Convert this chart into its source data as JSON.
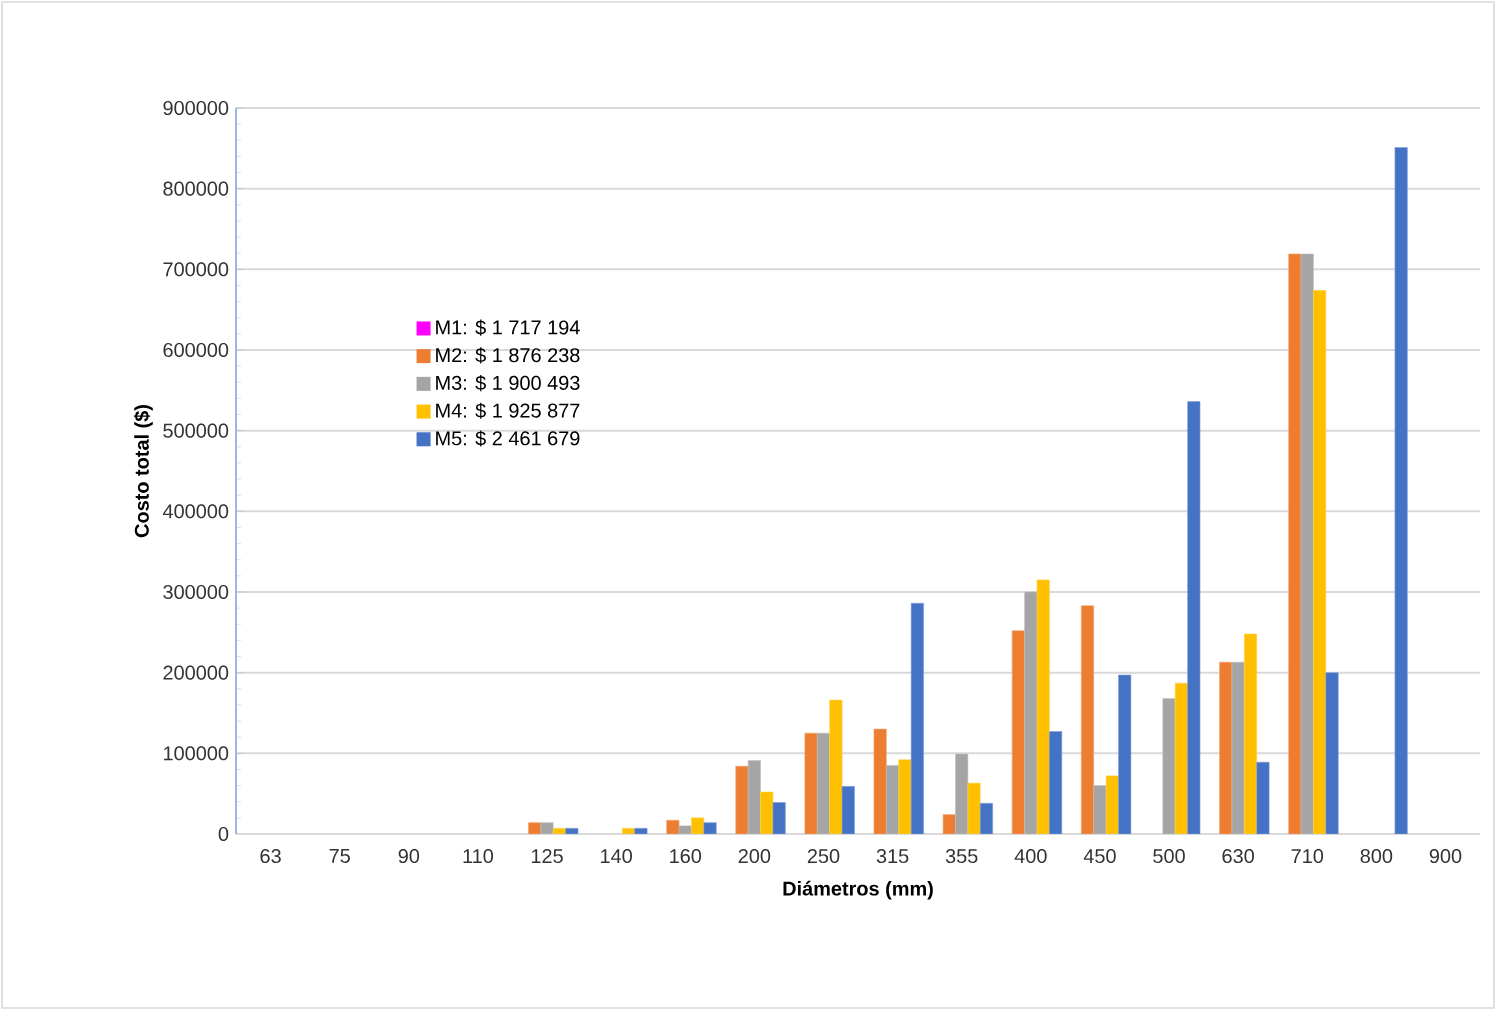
{
  "chart_data": {
    "type": "bar",
    "xlabel": "Diámetros (mm)",
    "ylabel": "Costo total ($)",
    "categories": [
      "63",
      "75",
      "90",
      "110",
      "125",
      "140",
      "160",
      "200",
      "250",
      "315",
      "355",
      "400",
      "450",
      "500",
      "630",
      "710",
      "800",
      "900"
    ],
    "series": [
      {
        "name": "M1:   $ 1 717 194",
        "color": "#ff00ff",
        "values": [
          null,
          null,
          null,
          null,
          null,
          null,
          null,
          null,
          null,
          null,
          null,
          null,
          null,
          null,
          null,
          null,
          null,
          null
        ]
      },
      {
        "name": "M2:   $ 1 876 238",
        "color": "#ed7d31",
        "values": [
          null,
          null,
          null,
          null,
          14000,
          null,
          17000,
          84000,
          125000,
          130000,
          24000,
          252000,
          283000,
          null,
          213000,
          719000,
          null,
          null
        ]
      },
      {
        "name": "M3:   $ 1 900 493",
        "color": "#a5a5a5",
        "values": [
          null,
          null,
          null,
          null,
          14000,
          null,
          10000,
          91000,
          125000,
          85000,
          99000,
          300000,
          60000,
          168000,
          213000,
          719000,
          null,
          null
        ]
      },
      {
        "name": "M4:   $ 1 925 877",
        "color": "#ffc000",
        "values": [
          null,
          null,
          null,
          null,
          7000,
          7000,
          20000,
          52000,
          166000,
          92000,
          63000,
          315000,
          72000,
          187000,
          248000,
          674000,
          null,
          null
        ]
      },
      {
        "name": "M5:   $ 2 461 679",
        "color": "#4472c4",
        "values": [
          null,
          null,
          null,
          null,
          7000,
          7000,
          14000,
          39000,
          59000,
          286000,
          38000,
          127000,
          197000,
          536000,
          89000,
          200000,
          851000,
          null
        ]
      }
    ],
    "ylim": [
      0,
      900000
    ],
    "yticks": [
      0,
      100000,
      200000,
      300000,
      400000,
      500000,
      600000,
      700000,
      800000,
      900000
    ],
    "grid": "y",
    "legend": "left"
  }
}
